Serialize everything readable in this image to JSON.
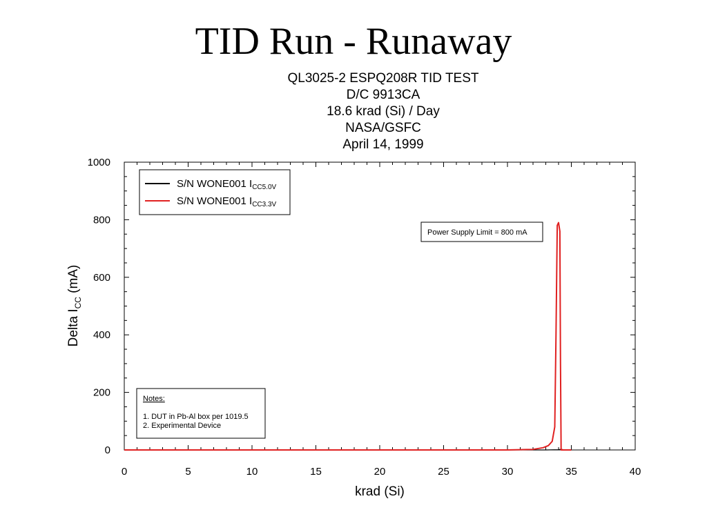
{
  "slide": {
    "title": "TID Run - Runaway"
  },
  "chart_data": {
    "type": "line",
    "title_lines": [
      "QL3025-2 ESPQ208R TID TEST",
      "D/C 9913CA",
      "18.6 krad (Si) / Day",
      "NASA/GSFC",
      "April 14, 1999"
    ],
    "xlabel": "krad (Si)",
    "ylabel": {
      "main": "Delta I",
      "sub": "CC",
      "suffix": " (mA)"
    },
    "xlim": [
      0,
      40
    ],
    "ylim": [
      0,
      1000
    ],
    "x_ticks": [
      0,
      5,
      10,
      15,
      20,
      25,
      30,
      35,
      40
    ],
    "y_ticks": [
      0,
      200,
      400,
      600,
      800,
      1000
    ],
    "grid": false,
    "legend_position": "top-left",
    "series": [
      {
        "name": {
          "main": "S/N WONE001 I",
          "sub": "CC5.0V"
        },
        "color": "#000000",
        "x": [
          0,
          5,
          10,
          15,
          20,
          25,
          30,
          33,
          34,
          34.2,
          34.5,
          35
        ],
        "y": [
          0,
          0,
          0,
          0,
          0,
          0,
          0,
          0,
          1,
          2,
          0,
          0
        ]
      },
      {
        "name": {
          "main": "S/N WONE001 I",
          "sub": "CC3.3V"
        },
        "color": "#e02020",
        "x": [
          0,
          25,
          30,
          32,
          32.8,
          33.2,
          33.5,
          33.7,
          33.8,
          33.9,
          34.0,
          34.1,
          34.15,
          34.2,
          34.4,
          35
        ],
        "y": [
          0,
          0,
          0,
          2,
          8,
          15,
          30,
          80,
          400,
          780,
          790,
          760,
          300,
          0,
          0,
          0
        ]
      }
    ],
    "annotations": {
      "power_supply": "Power Supply Limit = 800 mA",
      "notes_title": "Notes:",
      "notes_lines": [
        "1. DUT in Pb-Al box per 1019.5",
        "2. Experimental Device"
      ]
    }
  }
}
